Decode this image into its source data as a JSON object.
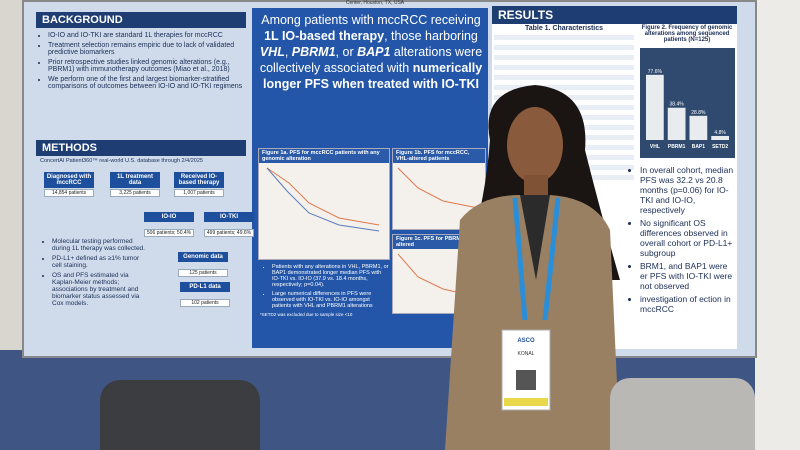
{
  "header": {
    "affiliation": "Center, Houston, TX, USA"
  },
  "background": {
    "title": "BACKGROUND",
    "bullets": [
      "IO-IO and IO-TKI are standard 1L therapies for mccRCC",
      "Treatment selection remains empiric due to lack of validated predictive biomarkers",
      "Prior retrospective studies linked genomic alterations (e.g., PBRM1) with immunotherapy outcomes (Miao et al., 2018)",
      "We perform one of the first and largest biomarker-stratified comparisons of outcomes between IO-IO and IO-TKI regimens"
    ]
  },
  "methods": {
    "title": "METHODS",
    "source": "ConcertAI Patient360™ real-world U.S. database through 2/4/2025",
    "nodes": [
      {
        "label": "Diagnosed with mccRCC",
        "count": "14,854 patients"
      },
      {
        "label": "1L treatment data",
        "count": "3,225 patients"
      },
      {
        "label": "Received IO-based therapy",
        "count": "1,007 patients"
      },
      {
        "label": "IO-IO",
        "count": "506 patients; 50.4%"
      },
      {
        "label": "IO-TKI",
        "count": "499 patients; 49.6%"
      },
      {
        "label": "Genomic data",
        "count": "125 patients"
      },
      {
        "label": "PD-L1 data",
        "count": "102 patients"
      }
    ],
    "bullets": [
      "Molecular testing performed during 1L therapy was collected.",
      "PD-L1+ defined as ≥1% tumor cell staining.",
      "OS and PFS estimated via Kaplan-Meier methods; associations by treatment and biomarker status assessed via Cox models."
    ]
  },
  "headline": [
    "Among patients with mccRCC receiving ",
    "1L IO-based therapy",
    ", those harboring ",
    "VHL",
    ", ",
    "PBRM1",
    ", or ",
    "BAP1",
    " alterations were collectively associated with ",
    "numerically longer PFS when treated with IO-TKI"
  ],
  "figures": {
    "fig1a": "Figure 1a. PFS for mccRCC patients with any genomic alteration",
    "fig1b": "Figure 1b. PFS for mccRCC, VHL-altered patients",
    "fig1c": "Figure 1c. PFS for PBRM1-altered"
  },
  "findings": [
    "Patients with any alterations in VHL, PBRM1, or BAP1 demonstrated longer median PFS with IO-TKI vs. IO-IO (37.9 vs. 18.4 months, respectively; p=0.04).",
    "Large numerical differences in PFS were observed with IO-TKI vs. IO-IO amongst patients with VHL and PBRM1 alterations"
  ],
  "footnote": "*SETD2 was excluded due to sample size <10",
  "results": {
    "title": "RESULTS",
    "table_title": "Table 1. Characteristics",
    "bullets": [
      "In overall cohort, median PFS was 32.2 vs 20.8 months (p=0.06) for IO-TKI and IO-IO, respectively",
      "No significant OS differences observed in overall cohort or PD-L1+ subgroup",
      "BRM1, and BAP1 were er PFS with IO-TKI were not observed",
      "investigation of ection in mccRCC"
    ]
  },
  "chart_data": {
    "type": "bar",
    "title": "Figure 2. Frequency of genomic alterations among sequenced patients (N=125)",
    "categories": [
      "VHL",
      "PBRM1",
      "BAP1",
      "SETD2"
    ],
    "values": [
      77.6,
      38.4,
      28.8,
      4.8
    ],
    "value_labels": [
      "77.6%",
      "38.4%",
      "28.8%",
      "4.8%"
    ],
    "ylim": [
      0,
      100
    ],
    "color": "#e8ecef"
  },
  "badge": {
    "event": "ASCO",
    "name": "KONAL"
  }
}
